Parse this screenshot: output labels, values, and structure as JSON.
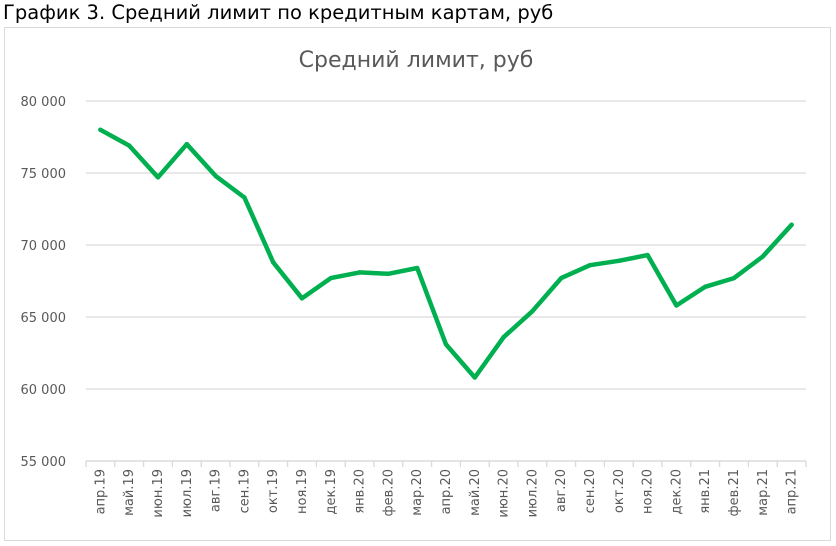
{
  "page": {
    "title": "График 3. Средний лимит по кредитным картам, руб"
  },
  "chart_data": {
    "type": "line",
    "title": "Средний лимит, руб",
    "xlabel": "",
    "ylabel": "",
    "categories": [
      "апр.19",
      "май.19",
      "июн.19",
      "июл.19",
      "авг.19",
      "сен.19",
      "окт.19",
      "ноя.19",
      "дек.19",
      "янв.20",
      "фев.20",
      "мар.20",
      "апр.20",
      "май.20",
      "июн.20",
      "июл.20",
      "авг.20",
      "сен.20",
      "окт.20",
      "ноя.20",
      "дек.20",
      "янв.21",
      "фев.21",
      "мар.21",
      "апр.21"
    ],
    "series": [
      {
        "values": [
          78000,
          76900,
          74700,
          77000,
          74800,
          73300,
          68800,
          66300,
          67700,
          68100,
          68000,
          68400,
          63100,
          60800,
          63600,
          65400,
          67700,
          68600,
          68900,
          69300,
          65800,
          67100,
          67700,
          69200,
          71400
        ],
        "color": "#00b050"
      }
    ],
    "ylim": [
      55000,
      80000
    ],
    "yticks": [
      55000,
      60000,
      65000,
      70000,
      75000,
      80000
    ],
    "ytick_labels": [
      "55 000",
      "60 000",
      "65 000",
      "70 000",
      "75 000",
      "80 000"
    ],
    "grid": true,
    "legend": "none",
    "gridline_color": "#d9d9d9"
  }
}
